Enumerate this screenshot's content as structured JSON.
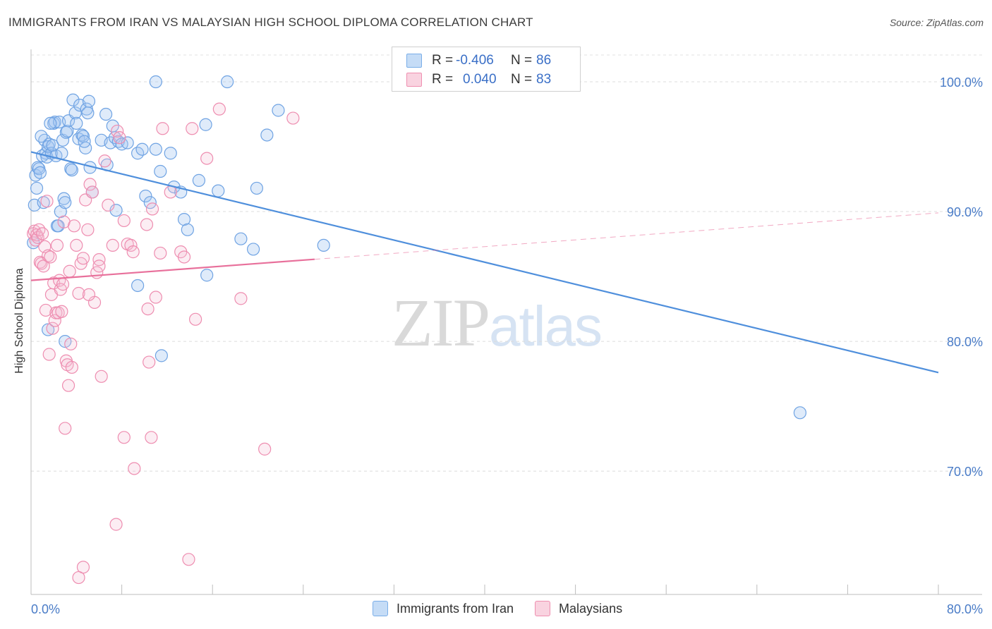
{
  "title": "IMMIGRANTS FROM IRAN VS MALAYSIAN HIGH SCHOOL DIPLOMA CORRELATION CHART",
  "source": "Source: ZipAtlas.com",
  "watermark": {
    "zip": "ZIP",
    "atlas": "atlas"
  },
  "legend": {
    "r_label": "R =",
    "n_label": "N =",
    "entries": [
      {
        "name": "Immigrants from Iran",
        "r": "-0.406",
        "n": "86",
        "color": "#7aaee8",
        "fill": "#c5dcf6"
      },
      {
        "name": "Malaysians",
        "r": "0.040",
        "n": "83",
        "color": "#ef8fb0",
        "fill": "#f9d3e0"
      }
    ]
  },
  "chart_data": {
    "type": "scatter",
    "xlabel": "",
    "ylabel": "High School Diploma",
    "xlim": [
      0,
      80
    ],
    "ylim": [
      60.5,
      102.5
    ],
    "x_tick_labels": [
      "0.0%",
      "80.0%"
    ],
    "x_ticks": [
      0,
      8,
      16,
      24,
      32,
      40,
      48,
      56,
      64,
      72,
      80
    ],
    "y_ticks": [
      70,
      80,
      90,
      100
    ],
    "y_tick_labels": [
      "70.0%",
      "80.0%",
      "90.0%",
      "100.0%"
    ],
    "grid": true,
    "series": [
      {
        "name": "Immigrants from Iran",
        "color": "#4f8fdc",
        "trend": {
          "x": [
            0,
            80
          ],
          "y": [
            94.6,
            77.6
          ],
          "dashed_from": null
        },
        "points": [
          [
            0.2,
            87.6
          ],
          [
            0.3,
            90.5
          ],
          [
            0.4,
            92.8
          ],
          [
            0.5,
            91.8
          ],
          [
            0.6,
            93.4
          ],
          [
            0.7,
            93.3
          ],
          [
            0.8,
            93.0
          ],
          [
            1.0,
            94.3
          ],
          [
            1.1,
            90.7
          ],
          [
            1.2,
            95.5
          ],
          [
            1.3,
            94.5
          ],
          [
            1.4,
            94.2
          ],
          [
            1.5,
            95.0
          ],
          [
            1.6,
            95.2
          ],
          [
            1.8,
            94.5
          ],
          [
            1.9,
            95.1
          ],
          [
            2.0,
            96.8
          ],
          [
            2.1,
            96.9
          ],
          [
            2.2,
            94.3
          ],
          [
            2.3,
            88.9
          ],
          [
            2.4,
            88.9
          ],
          [
            2.5,
            96.9
          ],
          [
            2.6,
            90.0
          ],
          [
            2.7,
            94.5
          ],
          [
            2.8,
            95.5
          ],
          [
            2.9,
            91.0
          ],
          [
            3.0,
            90.7
          ],
          [
            3.1,
            96.1
          ],
          [
            3.2,
            96.2
          ],
          [
            3.3,
            97.0
          ],
          [
            3.5,
            93.3
          ],
          [
            3.6,
            93.2
          ],
          [
            3.7,
            98.6
          ],
          [
            3.9,
            97.6
          ],
          [
            4.0,
            96.8
          ],
          [
            4.2,
            95.6
          ],
          [
            4.3,
            98.2
          ],
          [
            4.5,
            95.9
          ],
          [
            4.6,
            95.8
          ],
          [
            4.8,
            94.9
          ],
          [
            4.9,
            97.9
          ],
          [
            5.0,
            97.6
          ],
          [
            5.1,
            98.5
          ],
          [
            5.2,
            93.4
          ],
          [
            5.4,
            91.5
          ],
          [
            6.2,
            95.5
          ],
          [
            6.6,
            97.5
          ],
          [
            6.7,
            93.6
          ],
          [
            7.0,
            95.3
          ],
          [
            7.2,
            96.6
          ],
          [
            7.4,
            95.7
          ],
          [
            7.5,
            90.1
          ],
          [
            7.7,
            95.4
          ],
          [
            8.0,
            95.2
          ],
          [
            8.5,
            95.3
          ],
          [
            9.4,
            94.5
          ],
          [
            9.8,
            94.8
          ],
          [
            10.1,
            91.2
          ],
          [
            10.5,
            90.7
          ],
          [
            11.0,
            94.8
          ],
          [
            11.0,
            100.0
          ],
          [
            11.4,
            93.1
          ],
          [
            12.3,
            94.5
          ],
          [
            12.6,
            91.9
          ],
          [
            13.2,
            91.5
          ],
          [
            13.5,
            89.4
          ],
          [
            13.8,
            88.6
          ],
          [
            14.8,
            92.4
          ],
          [
            15.4,
            96.7
          ],
          [
            16.5,
            91.6
          ],
          [
            17.3,
            100.0
          ],
          [
            18.5,
            87.9
          ],
          [
            19.6,
            87.1
          ],
          [
            19.9,
            91.8
          ],
          [
            20.8,
            95.9
          ],
          [
            21.8,
            97.8
          ],
          [
            25.8,
            87.4
          ],
          [
            67.8,
            74.5
          ],
          [
            9.4,
            84.3
          ],
          [
            11.5,
            78.9
          ],
          [
            1.5,
            80.9
          ],
          [
            3.0,
            80.0
          ],
          [
            15.5,
            85.1
          ],
          [
            0.9,
            95.8
          ],
          [
            1.7,
            96.8
          ],
          [
            4.7,
            95.4
          ]
        ]
      },
      {
        "name": "Malaysians",
        "color": "#e8709b",
        "trend": {
          "x": [
            0,
            80
          ],
          "y": [
            84.7,
            89.9
          ],
          "dashed_from": 25
        },
        "points": [
          [
            0.2,
            88.3
          ],
          [
            0.3,
            88.5
          ],
          [
            0.4,
            87.8
          ],
          [
            0.5,
            88.2
          ],
          [
            0.6,
            88.0
          ],
          [
            0.7,
            88.6
          ],
          [
            0.8,
            86.1
          ],
          [
            0.9,
            86.0
          ],
          [
            1.0,
            88.3
          ],
          [
            1.1,
            85.8
          ],
          [
            1.2,
            87.3
          ],
          [
            1.3,
            82.4
          ],
          [
            1.5,
            86.6
          ],
          [
            1.6,
            79.0
          ],
          [
            1.7,
            86.5
          ],
          [
            1.8,
            83.6
          ],
          [
            1.9,
            81.0
          ],
          [
            2.0,
            84.5
          ],
          [
            2.1,
            81.6
          ],
          [
            2.2,
            82.2
          ],
          [
            2.3,
            87.4
          ],
          [
            2.4,
            82.2
          ],
          [
            2.5,
            84.7
          ],
          [
            2.6,
            84.0
          ],
          [
            2.7,
            82.3
          ],
          [
            2.8,
            84.4
          ],
          [
            2.9,
            89.2
          ],
          [
            3.0,
            73.3
          ],
          [
            3.1,
            78.5
          ],
          [
            3.2,
            78.2
          ],
          [
            3.3,
            76.6
          ],
          [
            3.4,
            85.4
          ],
          [
            3.6,
            78.0
          ],
          [
            3.8,
            88.9
          ],
          [
            4.0,
            87.4
          ],
          [
            4.2,
            83.7
          ],
          [
            4.4,
            86.0
          ],
          [
            4.6,
            86.4
          ],
          [
            4.8,
            90.9
          ],
          [
            5.0,
            88.6
          ],
          [
            5.2,
            92.1
          ],
          [
            5.4,
            91.5
          ],
          [
            5.6,
            83.0
          ],
          [
            5.8,
            85.3
          ],
          [
            6.0,
            86.3
          ],
          [
            6.2,
            77.3
          ],
          [
            6.5,
            93.9
          ],
          [
            6.8,
            90.5
          ],
          [
            7.2,
            87.4
          ],
          [
            7.5,
            65.9
          ],
          [
            7.6,
            96.2
          ],
          [
            7.8,
            95.7
          ],
          [
            8.2,
            89.3
          ],
          [
            8.5,
            87.5
          ],
          [
            8.8,
            87.4
          ],
          [
            9.0,
            86.9
          ],
          [
            10.2,
            89.0
          ],
          [
            10.3,
            82.5
          ],
          [
            10.6,
            72.6
          ],
          [
            10.7,
            90.2
          ],
          [
            11.0,
            83.4
          ],
          [
            11.4,
            86.8
          ],
          [
            11.6,
            96.4
          ],
          [
            12.3,
            91.5
          ],
          [
            13.2,
            86.9
          ],
          [
            13.5,
            86.5
          ],
          [
            14.2,
            96.4
          ],
          [
            14.5,
            81.7
          ],
          [
            15.5,
            94.1
          ],
          [
            16.6,
            97.9
          ],
          [
            18.5,
            83.3
          ],
          [
            20.6,
            71.7
          ],
          [
            23.1,
            97.2
          ],
          [
            8.2,
            72.6
          ],
          [
            9.1,
            70.2
          ],
          [
            4.6,
            62.6
          ],
          [
            4.2,
            61.8
          ],
          [
            13.9,
            63.2
          ],
          [
            10.4,
            78.4
          ],
          [
            5.1,
            83.6
          ],
          [
            3.5,
            79.8
          ],
          [
            6.0,
            85.8
          ],
          [
            1.4,
            90.8
          ]
        ]
      }
    ]
  }
}
